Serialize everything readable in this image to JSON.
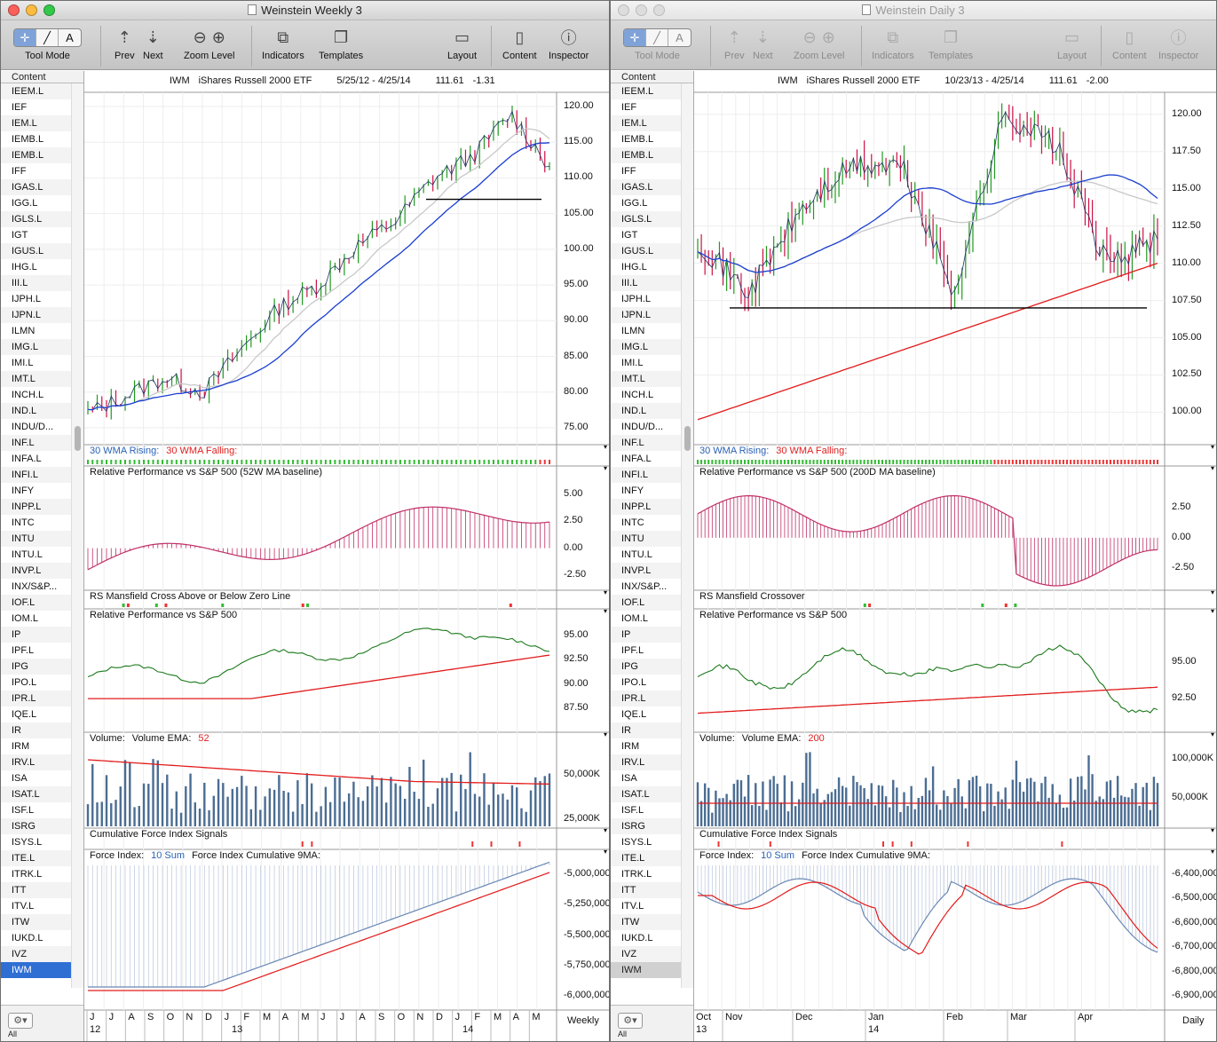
{
  "colors": {
    "price_up": "#229922",
    "price_down": "#cc1144",
    "ma_blue": "#1a3fd0",
    "ma_gray": "#c8c8c8",
    "ma_red": "#e21b1b",
    "rp_line": "#1c7a1c",
    "rp_bars": "#c03068",
    "volume": "#4b6d93",
    "force": "#6a88b4"
  },
  "toolbar": {
    "tool_mode": "Tool Mode",
    "prev": "Prev",
    "next": "Next",
    "zoom_level": "Zoom Level",
    "indicators": "Indicators",
    "templates": "Templates",
    "layout": "Layout",
    "content": "Content",
    "inspector": "Inspector",
    "tool_icons": [
      "crosshair-icon",
      "line-tool-icon",
      "text-tool-icon"
    ],
    "tool_glyphs": [
      "✛",
      "╱",
      "A"
    ]
  },
  "sidebar": {
    "header": "Content",
    "footer": "All",
    "gear": "⚙▾",
    "items": [
      "IEEM.L",
      "IEF",
      "IEM.L",
      "IEMB.L",
      "IEMB.L",
      "IFF",
      "IGAS.L",
      "IGG.L",
      "IGLS.L",
      "IGT",
      "IGUS.L",
      "IHG.L",
      "III.L",
      "IJPH.L",
      "IJPN.L",
      "ILMN",
      "IMG.L",
      "IMI.L",
      "IMT.L",
      "INCH.L",
      "IND.L",
      "INDU/D...",
      "INF.L",
      "INFA.L",
      "INFI.L",
      "INFY",
      "INPP.L",
      "INTC",
      "INTU",
      "INTU.L",
      "INVP.L",
      "INX/S&P...",
      "IOF.L",
      "IOM.L",
      "IP",
      "IPF.L",
      "IPG",
      "IPO.L",
      "IPR.L",
      "IQE.L",
      "IR",
      "IRM",
      "IRV.L",
      "ISA",
      "ISAT.L",
      "ISF.L",
      "ISRG",
      "ISYS.L",
      "ITE.L",
      "ITRK.L",
      "ITT",
      "ITV.L",
      "ITW",
      "IUKD.L",
      "IVZ",
      "IWM"
    ],
    "selected": "IWM"
  },
  "windows": [
    {
      "id": "A",
      "title": "Weinstein Weekly 3",
      "active": true,
      "header": {
        "symbol": "IWM",
        "name": "iShares Russell 2000 ETF",
        "range": "5/25/12 - 4/25/14",
        "last": "111.61",
        "change": "-1.31"
      },
      "panes": {
        "wma_rising": "30 WMA Rising:",
        "wma_falling": "30 WMA Falling:",
        "rp52": "Relative Performance vs S&P 500 (52W MA baseline)",
        "mansfield": "RS Mansfield Cross Above or Below Zero Line",
        "rp": "Relative Performance vs S&P 500",
        "volume": "Volume:",
        "volume_ema": "Volume EMA:",
        "volume_ema_n": "52",
        "cfi": "Cumulative Force Index Signals",
        "force": "Force Index:",
        "force_sum": "10 Sum",
        "force_cum": "Force Index Cumulative 9MA:"
      },
      "x_axis": {
        "months": [
          "J",
          "J",
          "A",
          "S",
          "O",
          "N",
          "D",
          "J",
          "F",
          "M",
          "A",
          "M",
          "J",
          "J",
          "A",
          "S",
          "O",
          "N",
          "D",
          "J",
          "F",
          "M",
          "A",
          "M"
        ],
        "years": [
          "12",
          "13",
          "14"
        ],
        "period": "Weekly"
      },
      "axes": {
        "price": [
          "120.00",
          "115.00",
          "110.00",
          "105.00",
          "100.00",
          "95.00",
          "90.00",
          "85.00",
          "80.00",
          "75.00"
        ],
        "rp52": [
          "5.00",
          "2.50",
          "0.00",
          "-2.50"
        ],
        "rp": [
          "95.00",
          "92.50",
          "90.00",
          "87.50"
        ],
        "volume": [
          "50,000K",
          "25,000K"
        ],
        "force": [
          "-5,000,000,",
          "-5,250,000,",
          "-5,500,000,",
          "-5,750,000,",
          "-6,000,000,"
        ]
      },
      "chart_data": {
        "type": "line",
        "title": "IWM iShares Russell 2000 ETF",
        "x": [
          "5/25/12",
          "7/12",
          "9/12",
          "11/12",
          "1/13",
          "3/13",
          "5/13",
          "7/13",
          "9/13",
          "11/13",
          "1/14",
          "3/14",
          "4/25/14"
        ],
        "series": [
          {
            "name": "Close",
            "values": [
              77.0,
              79.5,
              82.0,
              80.0,
              86.0,
              92.0,
              95.0,
              100.5,
              104.0,
              110.0,
              113.0,
              119.0,
              111.61
            ]
          }
        ],
        "ylim": [
          73,
          121
        ],
        "support_level": 107.0
      }
    },
    {
      "id": "B",
      "title": "Weinstein Daily 3",
      "active": false,
      "header": {
        "symbol": "IWM",
        "name": "iShares Russell 2000 ETF",
        "range": "10/23/13 - 4/25/14",
        "last": "111.61",
        "change": "-2.00"
      },
      "panes": {
        "wma_rising": "30 WMA Rising:",
        "wma_falling": "30 WMA Falling:",
        "rp52": "Relative Performance vs S&P 500 (200D MA baseline)",
        "mansfield": "RS Mansfield Crossover",
        "rp": "Relative Performance vs S&P 500",
        "volume": "Volume:",
        "volume_ema": "Volume EMA:",
        "volume_ema_n": "200",
        "cfi": "Cumulative Force Index Signals",
        "force": "Force Index:",
        "force_sum": "10 Sum",
        "force_cum": "Force Index Cumulative 9MA:"
      },
      "x_axis": {
        "months": [
          "Oct",
          "Nov",
          "Dec",
          "Jan",
          "Feb",
          "Mar",
          "Apr"
        ],
        "years": [
          "13",
          "14"
        ],
        "period": "Daily"
      },
      "axes": {
        "price": [
          "120.00",
          "117.50",
          "115.00",
          "112.50",
          "110.00",
          "107.50",
          "105.00",
          "102.50",
          "100.00"
        ],
        "rp52": [
          "2.50",
          "0.00",
          "-2.50"
        ],
        "rp": [
          "95.00",
          "92.50"
        ],
        "volume": [
          "100,000K",
          "50,000K"
        ],
        "force": [
          "-6,400,000,",
          "-6,500,000,",
          "-6,600,000,",
          "-6,700,000,",
          "-6,800,000,",
          "-6,900,000,"
        ]
      },
      "chart_data": {
        "type": "line",
        "title": "IWM iShares Russell 2000 ETF",
        "x": [
          "10/23/13",
          "11/8/13",
          "12/1/13",
          "12/31/13",
          "1/22/14",
          "2/4/14",
          "3/4/14",
          "3/20/14",
          "4/14/14",
          "4/25/14"
        ],
        "series": [
          {
            "name": "Close",
            "values": [
              111.5,
              108.0,
              113.5,
              116.5,
              116.5,
              108.0,
              120.0,
              118.0,
              110.0,
              111.61
            ]
          }
        ],
        "ylim": [
          98,
          121
        ],
        "support_level": 107.0
      }
    }
  ]
}
